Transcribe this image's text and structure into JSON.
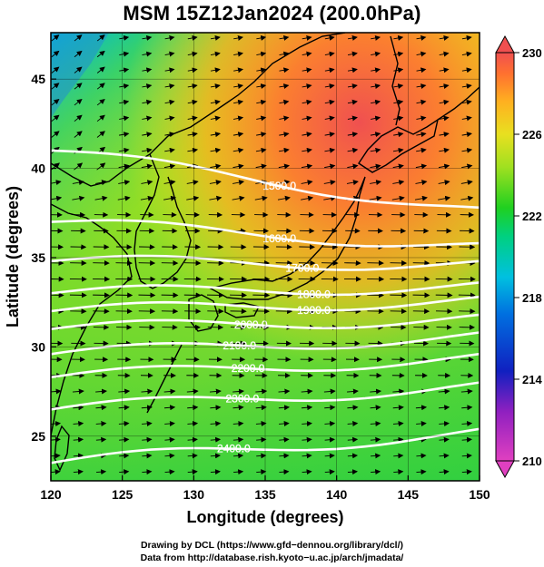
{
  "title": "MSM 15Z12Jan2024 (200.0hPa)",
  "chart_data": {
    "type": "heatmap",
    "variable": "temperature (shaded), geopotential height contours, wind vectors",
    "xlabel": "Longitude (degrees)",
    "ylabel": "Latitude  (degrees)",
    "xlim": [
      120,
      150
    ],
    "ylim": [
      22.5,
      47.6
    ],
    "x_ticks": [
      "120",
      "125",
      "130",
      "135",
      "140",
      "145",
      "150"
    ],
    "y_ticks": [
      "25",
      "30",
      "35",
      "40",
      "45"
    ],
    "colorbar": {
      "range": [
        210,
        230
      ],
      "ticks": [
        "210",
        "214",
        "218",
        "222",
        "226",
        "230"
      ],
      "colors": [
        "#e040c0",
        "#9020c0",
        "#1020c0",
        "#0070e0",
        "#00c0e0",
        "#00d080",
        "#20d020",
        "#a0e020",
        "#e8e020",
        "#ffb020",
        "#ff7030",
        "#f05050"
      ]
    },
    "contours": [
      {
        "label": "1500.0",
        "lat_at_120": 41.0,
        "lat_at_150": 37.6
      },
      {
        "label": "1600.0",
        "lat_at_120": 37.0,
        "lat_at_150": 35.6
      },
      {
        "label": "1700.0",
        "lat_at_120": 34.8,
        "lat_at_150": 34.6
      },
      {
        "label": "1800.0",
        "lat_at_120": 33.0,
        "lat_at_150": 33.4
      },
      {
        "label": "1900.0",
        "lat_at_120": 32.0,
        "lat_at_150": 32.6
      },
      {
        "label": "2000.0",
        "lat_at_120": 31.0,
        "lat_at_150": 31.6
      },
      {
        "label": "2100.0",
        "lat_at_120": 29.6,
        "lat_at_150": 30.6
      },
      {
        "label": "2200.0",
        "lat_at_120": 28.3,
        "lat_at_150": 29.4
      },
      {
        "label": "2300.0",
        "lat_at_120": 26.5,
        "lat_at_150": 27.8
      },
      {
        "label": "2400.0",
        "lat_at_120": 23.5,
        "lat_at_150": 25.2
      }
    ],
    "contour_label_positions": [
      {
        "label": "1500.0",
        "lon": 136.0
      },
      {
        "label": "1600.0",
        "lon": 136.0
      },
      {
        "label": "1700.0",
        "lon": 137.6
      },
      {
        "label": "1800.0",
        "lon": 138.4
      },
      {
        "label": "1900.0",
        "lon": 138.4
      },
      {
        "label": "2000.0",
        "lon": 134.0
      },
      {
        "label": "2100.0",
        "lon": 133.2
      },
      {
        "label": "2200.0",
        "lon": 133.8
      },
      {
        "label": "2300.0",
        "lon": 133.4
      },
      {
        "label": "2400.0",
        "lon": 132.8
      }
    ]
  },
  "credits": {
    "line1": "Drawing by DCL (https://www.gfd−dennou.org/library/dcl/)",
    "line2": "Data from http://database.rish.kyoto−u.ac.jp/arch/jmadata/"
  }
}
